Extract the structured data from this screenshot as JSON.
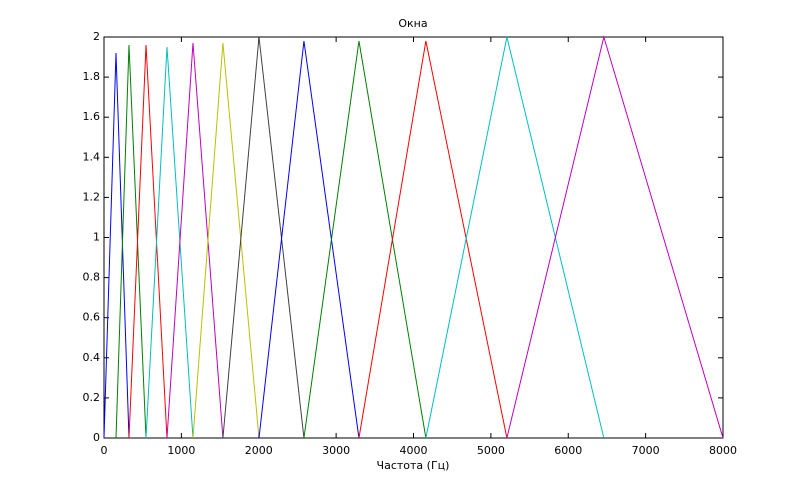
{
  "chart_data": {
    "type": "line",
    "title": "Окна",
    "x_label": "Частота (Гц)",
    "series": [
      {
        "color": "#0000ff",
        "x": [
          0,
          155,
          323
        ],
        "values": [
          0,
          1.92,
          0
        ]
      },
      {
        "color": "#008000",
        "x": [
          155,
          323,
          543
        ],
        "values": [
          0,
          1.96,
          0
        ]
      },
      {
        "color": "#ff0000",
        "x": [
          323,
          543,
          814
        ],
        "values": [
          0,
          1.96,
          0
        ]
      },
      {
        "color": "#00bfbf",
        "x": [
          543,
          814,
          1150
        ],
        "values": [
          0,
          1.95,
          0
        ]
      },
      {
        "color": "#bf00bf",
        "x": [
          814,
          1150,
          1537
        ],
        "values": [
          0,
          1.97,
          0
        ]
      },
      {
        "color": "#bfbf00",
        "x": [
          1150,
          1537,
          2003
        ],
        "values": [
          0,
          1.97,
          0
        ]
      },
      {
        "color": "#404040",
        "x": [
          1537,
          2003,
          2584
        ],
        "values": [
          0,
          2.0,
          0
        ]
      },
      {
        "color": "#0000ff",
        "x": [
          2003,
          2584,
          3295
        ],
        "values": [
          0,
          1.98,
          0
        ]
      },
      {
        "color": "#008000",
        "x": [
          2584,
          3295,
          4160
        ],
        "values": [
          0,
          1.98,
          0
        ]
      },
      {
        "color": "#ff0000",
        "x": [
          3295,
          4160,
          5207
        ],
        "values": [
          0,
          1.98,
          0
        ]
      },
      {
        "color": "#00bfbf",
        "x": [
          4160,
          5207,
          6460
        ],
        "values": [
          0,
          2.0,
          0
        ]
      },
      {
        "color": "#bf00bf",
        "x": [
          5207,
          6460,
          8000
        ],
        "values": [
          0,
          2.0,
          0
        ]
      }
    ],
    "xlim": [
      0,
      8000
    ],
    "xticks": [
      0,
      1000,
      2000,
      3000,
      4000,
      5000,
      6000,
      7000,
      8000
    ],
    "ylim": [
      0,
      2
    ],
    "yticks": [
      0,
      0.2,
      0.4,
      0.6,
      0.8,
      1,
      1.2,
      1.4,
      1.6,
      1.8,
      2
    ],
    "grid": false
  }
}
